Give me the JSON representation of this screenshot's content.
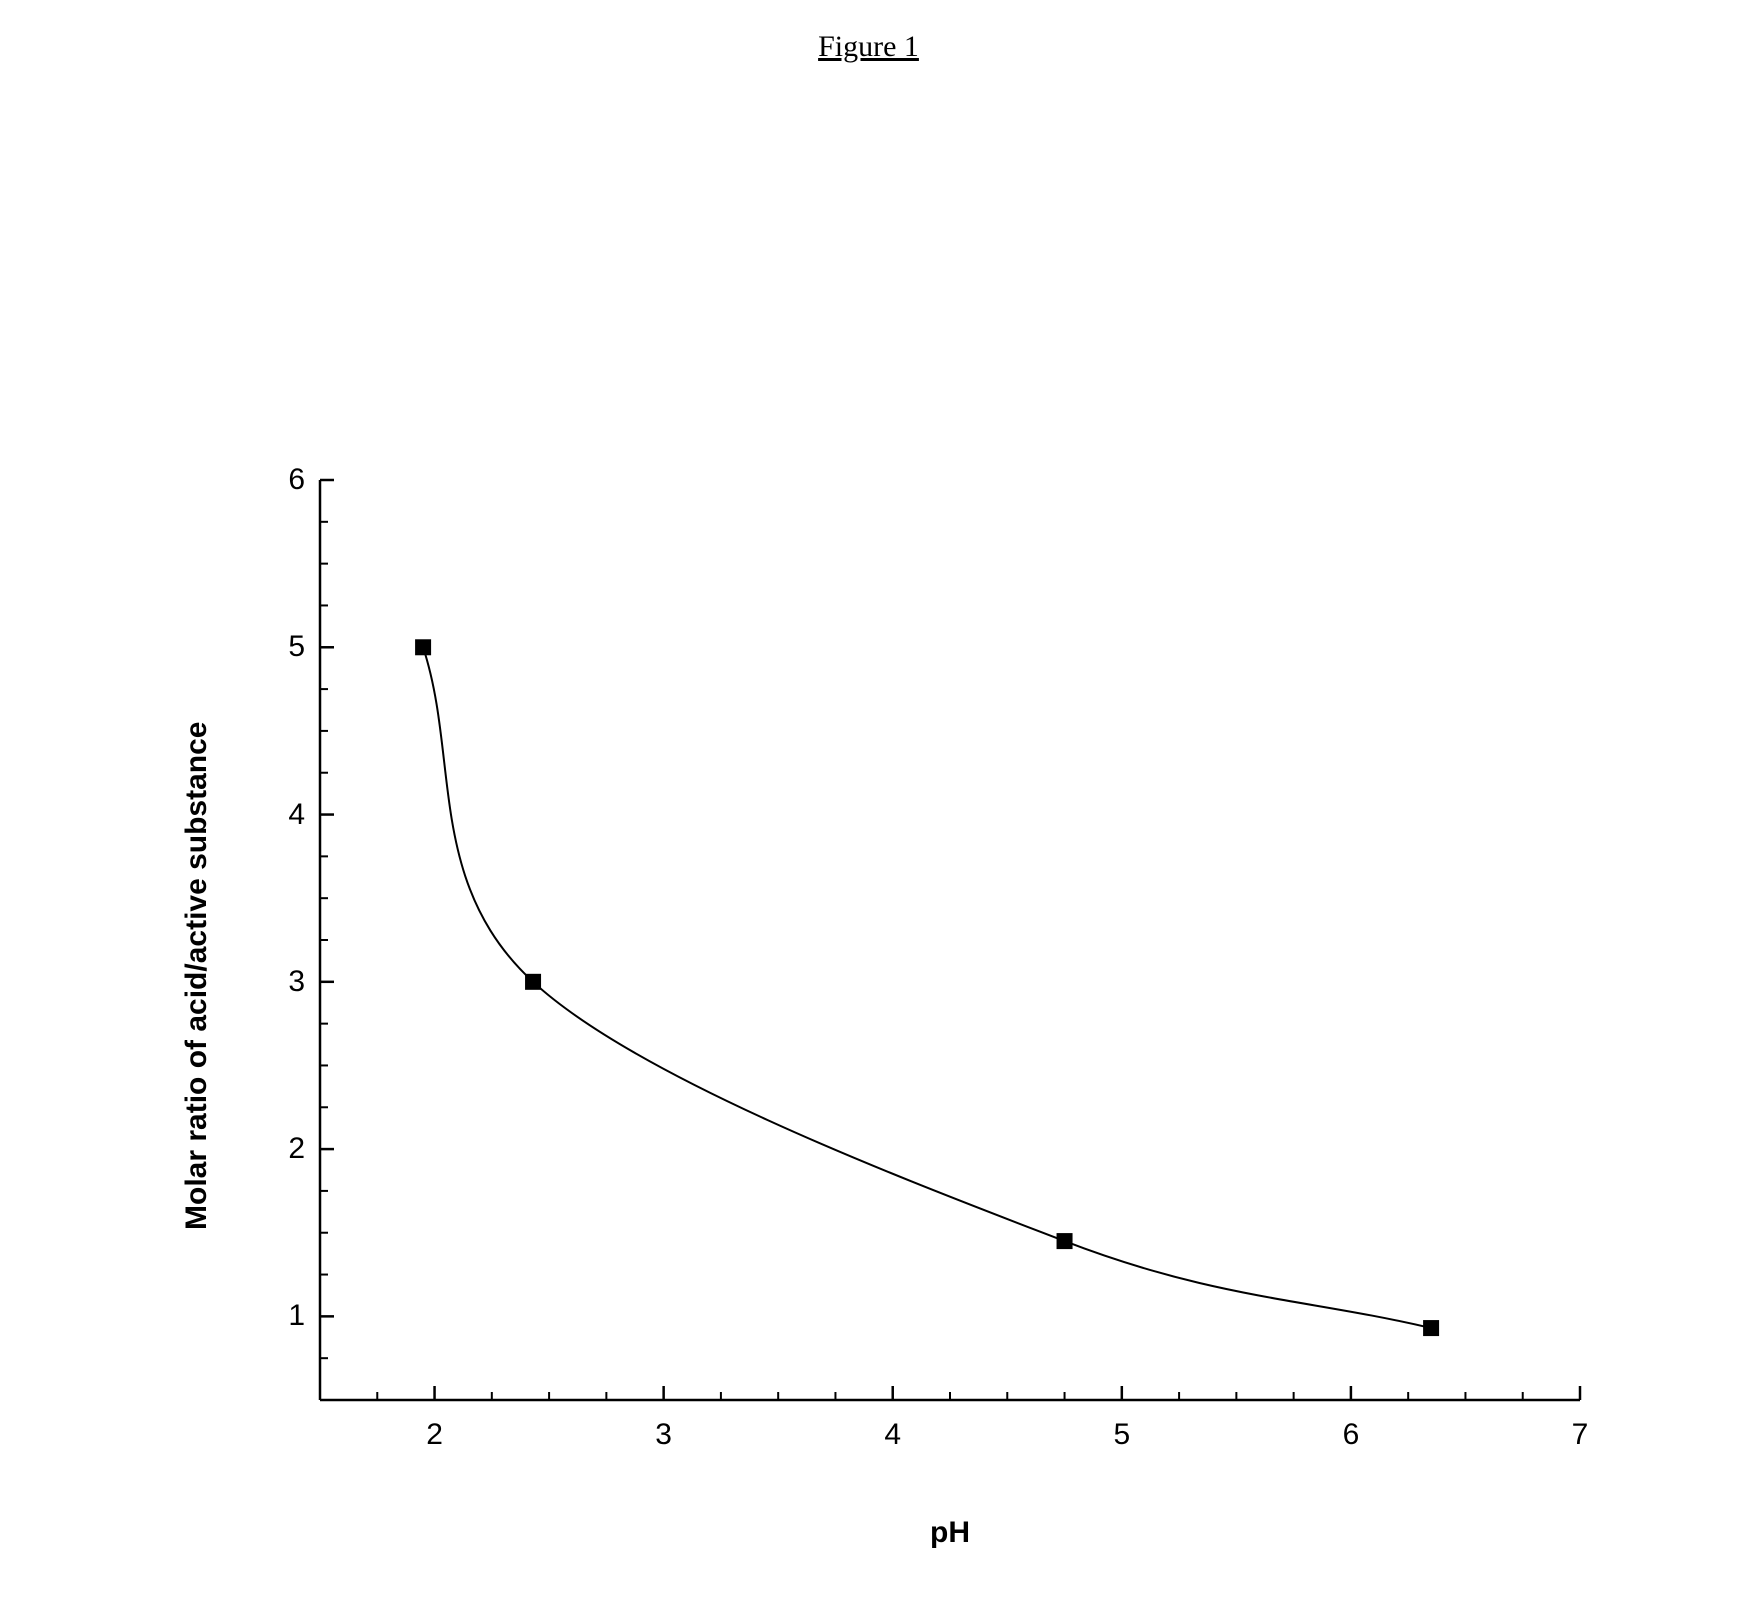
{
  "figure": {
    "title": "Figure 1",
    "title_fontsize": 30,
    "title_font": "Times New Roman"
  },
  "chart": {
    "type": "scatter-line",
    "xlabel": "pH",
    "ylabel": "Molar ratio of acid/active substance",
    "label_fontsize": 30,
    "label_fontweight": "bold",
    "label_font": "Arial",
    "xlim": [
      1.5,
      7.0
    ],
    "ylim": [
      0.5,
      6.0
    ],
    "xtick_major": [
      2,
      3,
      4,
      5,
      6,
      7
    ],
    "xtick_minor_step": 0.25,
    "ytick_major": [
      1,
      2,
      3,
      4,
      5,
      6
    ],
    "ytick_minor_step": 0.25,
    "tick_fontsize": 30,
    "tick_font": "Arial",
    "background_color": "#ffffff",
    "axis_color": "#000000",
    "axis_width": 2.5,
    "tick_length_major": 14,
    "tick_length_minor": 8,
    "curve_color": "#000000",
    "curve_width": 2,
    "marker_style": "square",
    "marker_size": 16,
    "marker_color": "#000000",
    "data_points": [
      {
        "x": 1.95,
        "y": 5.0
      },
      {
        "x": 2.43,
        "y": 3.0
      },
      {
        "x": 4.75,
        "y": 1.45
      },
      {
        "x": 6.35,
        "y": 0.93
      }
    ],
    "axis_open_top": true,
    "axis_open_right": true
  }
}
